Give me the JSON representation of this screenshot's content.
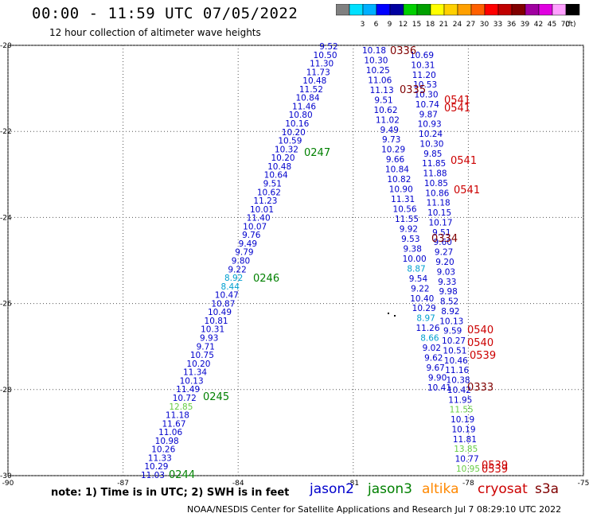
{
  "header": {
    "title": "00:00 - 11:59 UTC 07/05/2022",
    "subtitle": "12 hour collection of altimeter wave heights"
  },
  "color_scale": {
    "unit": "(ft)",
    "bins": [
      {
        "label": "",
        "color": "#808080"
      },
      {
        "label": "3",
        "color": "#00e0ff"
      },
      {
        "label": "6",
        "color": "#00b0ff"
      },
      {
        "label": "9",
        "color": "#0000ff"
      },
      {
        "label": "12",
        "color": "#0000a0"
      },
      {
        "label": "15",
        "color": "#00d000"
      },
      {
        "label": "18",
        "color": "#00a000"
      },
      {
        "label": "21",
        "color": "#ffff00"
      },
      {
        "label": "24",
        "color": "#ffd000"
      },
      {
        "label": "27",
        "color": "#ffa000"
      },
      {
        "label": "30",
        "color": "#ff6000"
      },
      {
        "label": "33",
        "color": "#ff0000"
      },
      {
        "label": "36",
        "color": "#c00000"
      },
      {
        "label": "39",
        "color": "#800000"
      },
      {
        "label": "42",
        "color": "#a000a0"
      },
      {
        "label": "45",
        "color": "#e000e0"
      },
      {
        "label": "70",
        "color": "#ffa0ff"
      },
      {
        "label": "",
        "color": "#000000"
      }
    ]
  },
  "map": {
    "lon_range": [
      -90,
      -75
    ],
    "lat_range": [
      -30,
      -20
    ],
    "x_ticks": [
      "-90",
      "-87",
      "-84",
      "-81",
      "-78",
      "-75"
    ],
    "y_ticks": [
      "-20",
      "-22",
      "-24",
      "-26",
      "-28",
      "-30"
    ]
  },
  "colors": {
    "jason2": "#0000cc",
    "jason3": "#008000",
    "altika": "#ff8800",
    "cryosat": "#cc0000",
    "s3a": "#800000",
    "light_blue": "#00a0d0",
    "light_green": "#66cc44"
  },
  "tracks": {
    "left_values": [
      "9.52",
      "10.50",
      "11.30",
      "11.73",
      "10.48",
      "11.52",
      "10.84",
      "11.46",
      "10.80",
      "10.16",
      "10.20",
      "10.59",
      "10.32",
      "10.20",
      "10.48",
      "10.64",
      "9.51",
      "10.62",
      "11.23",
      "10.01",
      "11.40",
      "10.07",
      "9.76",
      "9.49",
      "9.79",
      "9.80",
      "9.22",
      "8.92",
      "8.44",
      "10.47",
      "10.87",
      "10.49",
      "10.81",
      "10.31",
      "9.93",
      "9.71",
      "10.75",
      "10.20",
      "11.34",
      "10.13",
      "11.49",
      "10.72",
      "12.85",
      "11.18",
      "11.67",
      "11.06",
      "10.98",
      "10.26",
      "11.33",
      "10.29",
      "11.03"
    ],
    "right_values": [
      "10.18",
      "10.30",
      "10.25",
      "11.06",
      "11.13",
      "9.51",
      "10.62",
      "11.02",
      "9.49",
      "9.73",
      "10.29",
      "9.66",
      "10.84",
      "10.82",
      "10.90",
      "11.31",
      "10.56",
      "11.55",
      "9.92",
      "9.53",
      "9.38",
      "10.00",
      "8.87",
      "9.54",
      "9.22",
      "10.40",
      "10.29",
      "8.97",
      "11.26",
      "8.66",
      "9.02",
      "9.62",
      "9.67",
      "9.90",
      "10.41"
    ],
    "far_values": [
      "10.69",
      "10.31",
      "11.20",
      "10.53",
      "10.30",
      "10.74",
      "9.87",
      "10.93",
      "10.24",
      "10.30",
      "9.85",
      "11.85",
      "11.88",
      "10.85",
      "10.86",
      "11.18",
      "10.15",
      "10.17",
      "9.51",
      "9.60",
      "9.27",
      "9.20",
      "9.03",
      "9.33",
      "9.98",
      "8.52",
      "8.92",
      "10.13",
      "9.59",
      "10.27",
      "10.51",
      "10.46",
      "11.16",
      "10.38",
      "10.42",
      "11.95",
      "11.55",
      "10.19",
      "10.19",
      "11.81",
      "13.85",
      "10.77",
      "10.95"
    ],
    "labels": [
      {
        "text": "0336",
        "color": "#800000"
      },
      {
        "text": "0335",
        "color": "#800000"
      },
      {
        "text": "0541",
        "color": "#cc0000"
      },
      {
        "text": "0541",
        "color": "#cc0000"
      },
      {
        "text": "0247",
        "color": "#008000"
      },
      {
        "text": "0541",
        "color": "#cc0000"
      },
      {
        "text": "0541",
        "color": "#cc0000"
      },
      {
        "text": "0334",
        "color": "#800000"
      },
      {
        "text": "0246",
        "color": "#008000"
      },
      {
        "text": "0540",
        "color": "#cc0000"
      },
      {
        "text": "0540",
        "color": "#cc0000"
      },
      {
        "text": "0539",
        "color": "#cc0000"
      },
      {
        "text": "0333",
        "color": "#800000"
      },
      {
        "text": "0245",
        "color": "#008000"
      },
      {
        "text": "0244",
        "color": "#008000"
      },
      {
        "text": "0539",
        "color": "#cc0000"
      },
      {
        "text": "0539",
        "color": "#cc0000"
      }
    ]
  },
  "footer": {
    "note": "note: 1) Time is in UTC; 2) SWH is in feet",
    "credit": "NOAA/NESDIS Center for Satellite Applications and Research  Jul  7 08:29:10 UTC 2022",
    "satellites": [
      {
        "name": "jason2",
        "color": "#0000cc"
      },
      {
        "name": "jason3",
        "color": "#008000"
      },
      {
        "name": "altika",
        "color": "#ff8800"
      },
      {
        "name": "cryosat",
        "color": "#cc0000"
      },
      {
        "name": "s3a",
        "color": "#800000"
      }
    ]
  }
}
